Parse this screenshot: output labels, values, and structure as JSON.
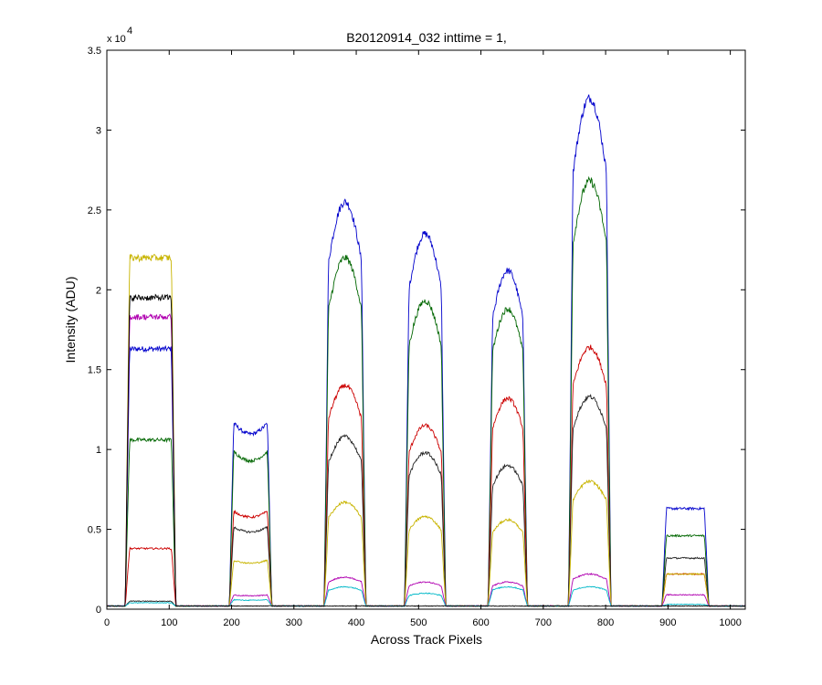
{
  "chart_data": {
    "type": "line",
    "title": "B20120914_032 inttime = 1,",
    "xlabel": "Across Track Pixels",
    "ylabel": "Intensity (ADU)",
    "y_multiplier_label": "x 10",
    "y_multiplier_exponent": "4",
    "xlim": [
      0,
      1024
    ],
    "ylim": [
      0,
      3.5
    ],
    "y_scale_factor": 10000,
    "xticks": [
      0,
      100,
      200,
      300,
      400,
      500,
      600,
      700,
      800,
      900,
      1000
    ],
    "yticks": [
      0,
      0.5,
      1,
      1.5,
      2,
      2.5,
      3,
      3.5
    ],
    "grid": false,
    "legend": "none",
    "baseline": 0.02,
    "ranges": [
      {
        "name": "r1",
        "x_start": 33,
        "x_end": 107,
        "shape": "flat"
      },
      {
        "name": "r2",
        "x_start": 200,
        "x_end": 261,
        "shape": "dip"
      },
      {
        "name": "r3",
        "x_start": 352,
        "x_end": 412,
        "shape": "peak"
      },
      {
        "name": "r4",
        "x_start": 481,
        "x_end": 540,
        "shape": "peak"
      },
      {
        "name": "r5",
        "x_start": 615,
        "x_end": 671,
        "shape": "peak"
      },
      {
        "name": "r6",
        "x_start": 744,
        "x_end": 805,
        "shape": "peak"
      },
      {
        "name": "r7",
        "x_start": 894,
        "x_end": 962,
        "shape": "flat"
      }
    ],
    "series": [
      {
        "color": "#0000cc",
        "levels": [
          1.63,
          1.18,
          2.55,
          2.35,
          2.12,
          3.2,
          0.63
        ]
      },
      {
        "color": "#006600",
        "levels": [
          1.06,
          1.0,
          2.2,
          1.93,
          1.88,
          2.68,
          0.46
        ]
      },
      {
        "color": "#cc0000",
        "levels": [
          0.38,
          0.62,
          1.4,
          1.15,
          1.32,
          1.64,
          0.22
        ]
      },
      {
        "color": "#222222",
        "levels": [
          0.05,
          0.52,
          1.08,
          0.98,
          0.9,
          1.33,
          0.32
        ]
      },
      {
        "color": "#c8b400",
        "levels": [
          2.2,
          0.31,
          0.67,
          0.58,
          0.56,
          0.8,
          0.22
        ]
      },
      {
        "color": "#b000b0",
        "levels": [
          1.83,
          0.09,
          0.2,
          0.17,
          0.17,
          0.22,
          0.09
        ]
      },
      {
        "color": "#00b8c8",
        "levels": [
          0.04,
          0.06,
          0.14,
          0.1,
          0.14,
          0.14,
          0.03
        ]
      },
      {
        "color": "#000000",
        "levels": [
          1.95,
          0.0,
          0.0,
          0.0,
          0.0,
          0.0,
          0.0
        ]
      }
    ]
  }
}
